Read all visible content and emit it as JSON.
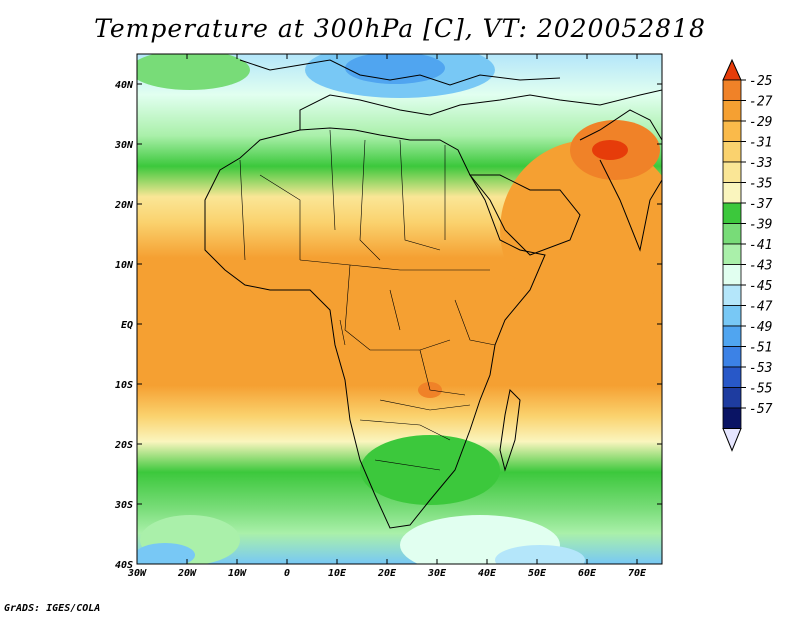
{
  "title": "Temperature at 300hPa [C], VT: 2020052818",
  "credit": "GrADS: IGES/COLA",
  "map": {
    "lon_ticks": [
      "30W",
      "20W",
      "10W",
      "0",
      "10E",
      "20E",
      "30E",
      "40E",
      "50E",
      "60E",
      "70E"
    ],
    "lat_ticks": [
      "40N",
      "30N",
      "20N",
      "10N",
      "EQ",
      "10S",
      "20S",
      "30S",
      "40S"
    ],
    "lon_range": [
      -30,
      75
    ],
    "lat_range": [
      -40,
      45
    ]
  },
  "colorbar": {
    "labels": [
      "-25",
      "-27",
      "-29",
      "-31",
      "-33",
      "-35",
      "-37",
      "-39",
      "-41",
      "-43",
      "-45",
      "-47",
      "-49",
      "-51",
      "-53",
      "-55",
      "-57"
    ],
    "colors": [
      "#e63c0a",
      "#f08228",
      "#f5a032",
      "#faba4a",
      "#fad26e",
      "#fae696",
      "#faf5be",
      "#3cc83c",
      "#78dc78",
      "#aaf0aa",
      "#e1fff0",
      "#b4e6fa",
      "#78c8f5",
      "#50a5f0",
      "#3c82e6",
      "#2858c8",
      "#1e3ca0",
      "#0a1464"
    ],
    "arrow_low_color": "#e6e6ff"
  }
}
